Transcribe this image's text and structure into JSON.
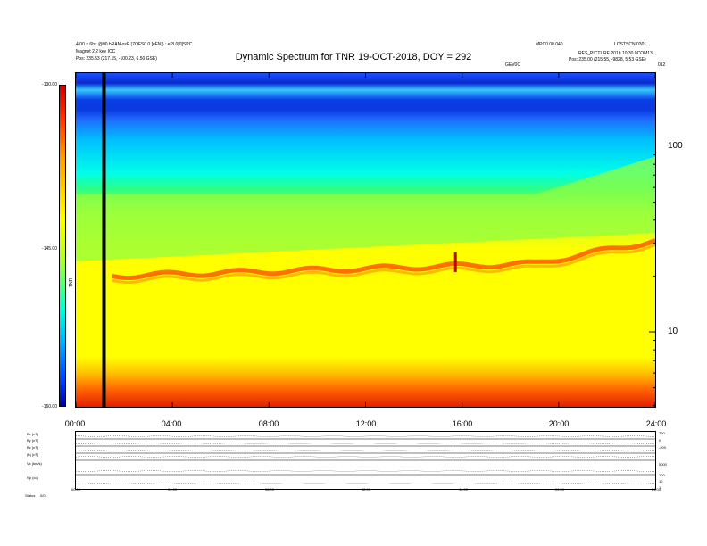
{
  "header": {
    "left_line1": "4.00 × 6hz @00 bRAN-ssP (7QFS0 0 [eFN]) : ePL0[0]SPC",
    "left_line2": "Magnet 2.2 kev ICC",
    "left_line3": "Pos:   235.53 (217.15, -100.23, 6.50 GSE)",
    "right_line1": "MPC0 00 040",
    "right_line1b": "LOSTSCN 0301",
    "right_line2": "RES_PICTURE 2018 10 30 0COM13",
    "right_line3": "Pos:   235.00 (215.55, -9828, 5.53 GSE)",
    "right_corner": "012",
    "center_small": "GEV0C"
  },
  "title": "Dynamic Spectrum for TNR 19-OCT-2018, DOY = 292",
  "chart_data": [
    {
      "type": "heatmap",
      "title": "Dynamic Spectrum for TNR 19-OCT-2018, DOY = 292",
      "x_tick_labels": [
        "00:00",
        "04:00",
        "08:00",
        "12:00",
        "16:00",
        "20:00",
        "24:00"
      ],
      "x_range": [
        "00:00",
        "24:00"
      ],
      "y_scale": "log",
      "y_tick_labels": [
        "100",
        "10"
      ],
      "colorbar": {
        "labels": [
          "-130.00",
          "-145.00",
          "-160.00"
        ],
        "range": [
          -160,
          -130
        ],
        "axis_label": "TNR",
        "colors": [
          "#c80000",
          "#ff3000",
          "#ff9a00",
          "#ffff00",
          "#a8ff30",
          "#00ffd8",
          "#00b0ff",
          "#0040ff",
          "#000090"
        ]
      },
      "features": {
        "data_gap_time": "01:10",
        "emission_line_start_khz": 20,
        "emission_line_end_khz": 31,
        "spike_time": "15:40"
      }
    },
    {
      "type": "line",
      "row_labels": [
        "Bx (nT)",
        "By (nT)",
        "Bz (nT)",
        "|B| (nT)",
        "Vx (km/s)",
        "Np (cc)",
        "Status"
      ],
      "right_axis_labels": [
        "200",
        "0",
        "-200",
        "5000",
        "100",
        "10",
        "1"
      ],
      "x_tick_labels": [
        "00:00",
        "04:00",
        "08:00",
        "12:00",
        "16:00",
        "20:00",
        "24:00"
      ],
      "status_value": "0/0"
    }
  ]
}
